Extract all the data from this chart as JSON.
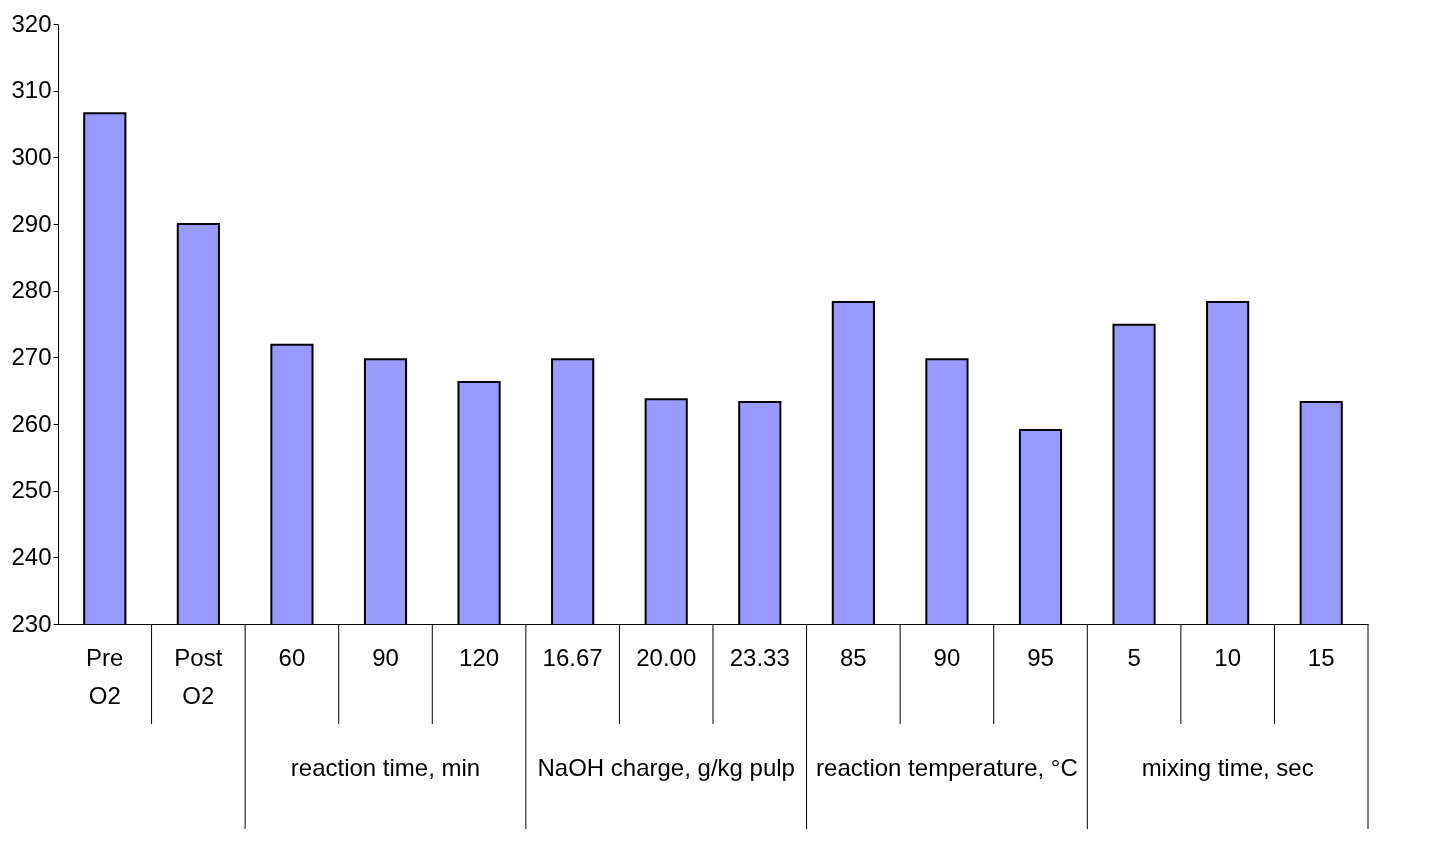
{
  "chart_data": {
    "type": "bar",
    "categories": [
      "Pre O2",
      "Post O2",
      "60",
      "90",
      "120",
      "16.67",
      "20.00",
      "23.33",
      "85",
      "90",
      "95",
      "5",
      "10",
      "15"
    ],
    "values": [
      306.6,
      290.0,
      271.9,
      269.7,
      266.3,
      269.7,
      263.7,
      263.3,
      278.3,
      269.7,
      259.1,
      274.9,
      278.3,
      263.3
    ],
    "color": "#9999ff",
    "ylim": [
      230,
      320
    ],
    "yticks": [
      230,
      240,
      250,
      260,
      270,
      280,
      290,
      300,
      310,
      320
    ],
    "grid": false,
    "annotations": [
      "reaction time, min",
      "NaOH charge, g/kg pulp",
      "reaction temperature, °C",
      "mixing time, sec"
    ]
  }
}
